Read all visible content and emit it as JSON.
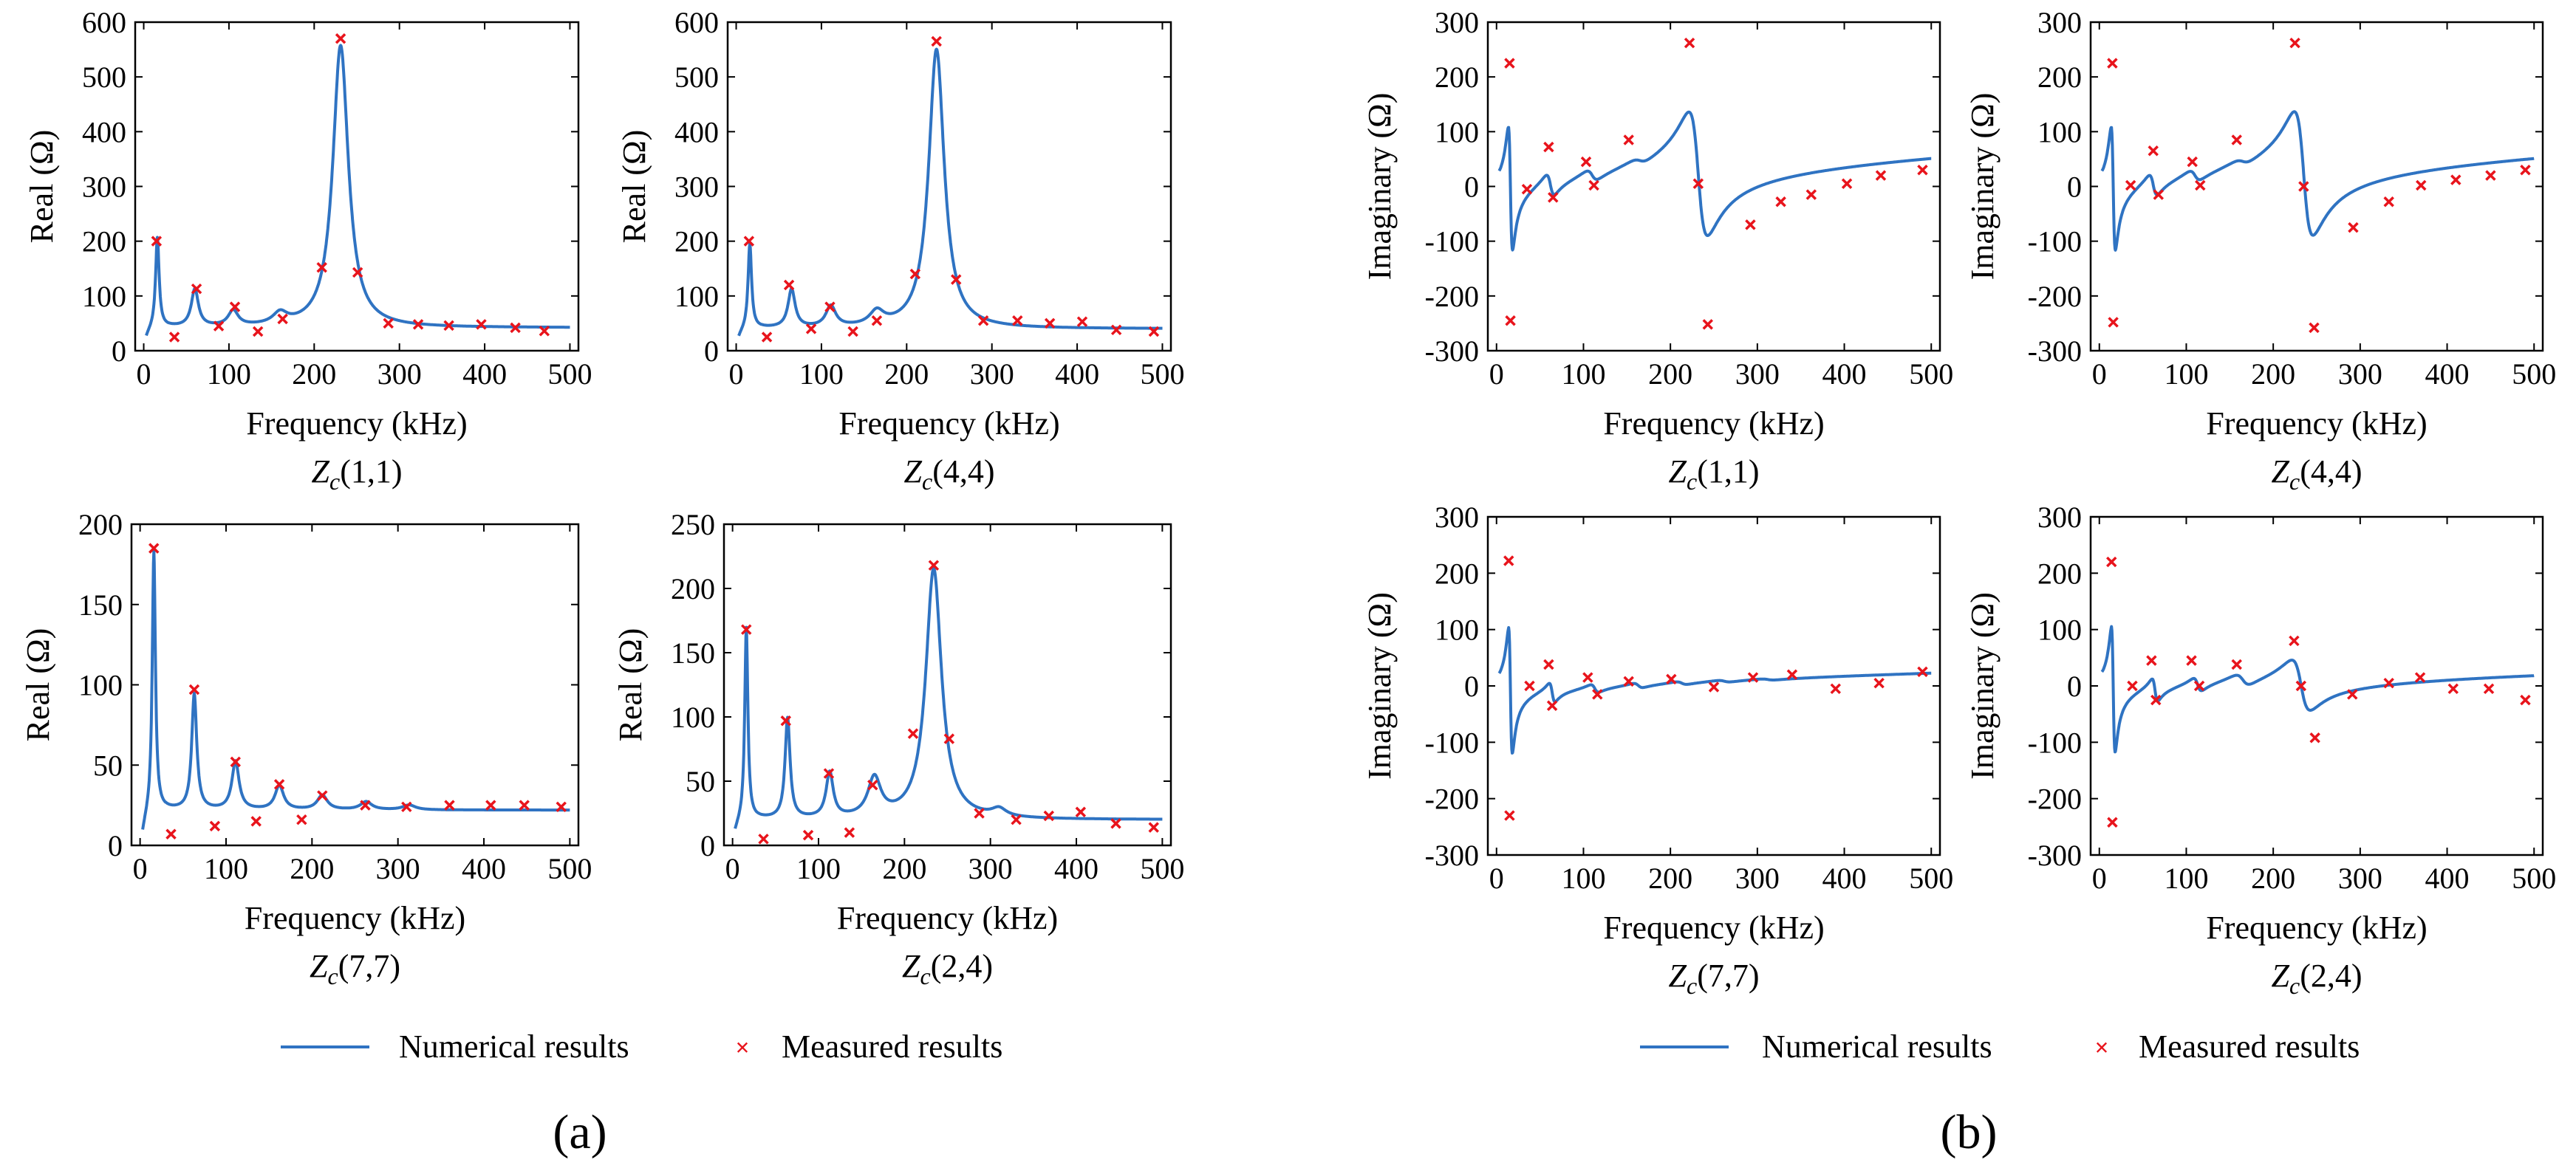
{
  "figure": {
    "panel_labels": [
      "(a)",
      "(b)"
    ],
    "legend": {
      "numerical_label": "Numerical results",
      "measured_label": "Measured results"
    },
    "colors": {
      "numerical": "#2f73c2",
      "measured": "#e8141c",
      "axis": "#000000"
    }
  },
  "chart_data": [
    {
      "id": "real_1_1",
      "type": "line",
      "caption_sub": "c",
      "caption_args": "(1,1)",
      "title": "Z_c(1,1)",
      "xlabel": "Frequency (kHz)",
      "ylabel": "Real (Ω)",
      "xlim": [
        -10,
        510
      ],
      "ylim": [
        0,
        600
      ],
      "xticks": [
        0,
        100,
        200,
        300,
        400,
        500
      ],
      "yticks": [
        0,
        100,
        200,
        300,
        400,
        500,
        600
      ],
      "baseline": 42,
      "start_value": 20,
      "damping": 0.5,
      "peaks": [
        {
          "f": 16,
          "a": 165,
          "w": 2.5
        },
        {
          "f": 60,
          "a": 68,
          "w": 5
        },
        {
          "f": 105,
          "a": 28,
          "w": 7
        },
        {
          "f": 160,
          "a": 20,
          "w": 10
        },
        {
          "f": 231,
          "a": 515,
          "w": 11
        }
      ],
      "measured": [
        [
          15,
          200
        ],
        [
          36,
          25
        ],
        [
          62,
          113
        ],
        [
          88,
          45
        ],
        [
          107,
          80
        ],
        [
          134,
          35
        ],
        [
          163,
          58
        ],
        [
          209,
          152
        ],
        [
          231,
          570
        ],
        [
          251,
          143
        ],
        [
          287,
          50
        ],
        [
          322,
          48
        ],
        [
          358,
          46
        ],
        [
          396,
          48
        ],
        [
          436,
          42
        ],
        [
          470,
          36
        ]
      ]
    },
    {
      "id": "real_4_4",
      "type": "line",
      "caption_sub": "c",
      "caption_args": "(4,4)",
      "title": "Z_c(4,4)",
      "xlabel": "Frequency (kHz)",
      "ylabel": "Real (Ω)",
      "xlim": [
        -10,
        510
      ],
      "ylim": [
        0,
        600
      ],
      "xticks": [
        0,
        100,
        200,
        300,
        400,
        500
      ],
      "yticks": [
        0,
        100,
        200,
        300,
        400,
        500,
        600
      ],
      "baseline": 40,
      "start_value": 20,
      "damping": 0.5,
      "peaks": [
        {
          "f": 16,
          "a": 155,
          "w": 2.5
        },
        {
          "f": 65,
          "a": 70,
          "w": 5
        },
        {
          "f": 111,
          "a": 38,
          "w": 7
        },
        {
          "f": 165,
          "a": 25,
          "w": 10
        },
        {
          "f": 235,
          "a": 510,
          "w": 11
        }
      ],
      "measured": [
        [
          15,
          200
        ],
        [
          36,
          25
        ],
        [
          62,
          120
        ],
        [
          88,
          40
        ],
        [
          110,
          80
        ],
        [
          137,
          35
        ],
        [
          165,
          55
        ],
        [
          210,
          140
        ],
        [
          235,
          565
        ],
        [
          258,
          130
        ],
        [
          290,
          55
        ],
        [
          330,
          55
        ],
        [
          368,
          50
        ],
        [
          406,
          53
        ],
        [
          446,
          38
        ],
        [
          490,
          35
        ]
      ]
    },
    {
      "id": "real_7_7",
      "type": "line",
      "caption_sub": "c",
      "caption_args": "(7,7)",
      "title": "Z_c(7,7)",
      "xlabel": "Frequency (kHz)",
      "ylabel": "Real (Ω)",
      "xlim": [
        -10,
        510
      ],
      "ylim": [
        0,
        200
      ],
      "xticks": [
        0,
        100,
        200,
        300,
        400,
        500
      ],
      "yticks": [
        0,
        50,
        100,
        150,
        200
      ],
      "baseline": 22,
      "start_value": 5,
      "damping": 0.5,
      "peaks": [
        {
          "f": 16,
          "a": 163,
          "w": 2.2
        },
        {
          "f": 63,
          "a": 72,
          "w": 3.5
        },
        {
          "f": 111,
          "a": 30,
          "w": 5
        },
        {
          "f": 162,
          "a": 15,
          "w": 6
        },
        {
          "f": 212,
          "a": 9,
          "w": 7
        },
        {
          "f": 263,
          "a": 5,
          "w": 8
        },
        {
          "f": 313,
          "a": 3,
          "w": 9
        }
      ],
      "measured": [
        [
          16,
          185
        ],
        [
          36,
          7
        ],
        [
          63,
          97
        ],
        [
          87,
          12
        ],
        [
          111,
          52
        ],
        [
          135,
          15
        ],
        [
          162,
          38
        ],
        [
          188,
          16
        ],
        [
          212,
          31
        ],
        [
          262,
          25
        ],
        [
          310,
          24
        ],
        [
          360,
          25
        ],
        [
          408,
          25
        ],
        [
          447,
          25
        ],
        [
          490,
          24
        ]
      ]
    },
    {
      "id": "real_2_4",
      "type": "line",
      "caption_sub": "c",
      "caption_args": "(2,4)",
      "title": "Z_c(2,4)",
      "xlabel": "Frequency (kHz)",
      "ylabel": "Real (Ω)",
      "xlim": [
        -10,
        510
      ],
      "ylim": [
        0,
        250
      ],
      "xticks": [
        0,
        100,
        200,
        300,
        400,
        500
      ],
      "yticks": [
        0,
        50,
        100,
        150,
        200,
        250
      ],
      "baseline": 20,
      "start_value": 8,
      "damping": 0.5,
      "peaks": [
        {
          "f": 16,
          "a": 150,
          "w": 2.2
        },
        {
          "f": 64,
          "a": 78,
          "w": 3.5
        },
        {
          "f": 113,
          "a": 35,
          "w": 5
        },
        {
          "f": 165,
          "a": 30,
          "w": 9
        },
        {
          "f": 234,
          "a": 195,
          "w": 11
        },
        {
          "f": 310,
          "a": 6,
          "w": 10
        }
      ],
      "measured": [
        [
          16,
          168
        ],
        [
          36,
          5
        ],
        [
          62,
          97
        ],
        [
          88,
          8
        ],
        [
          112,
          56
        ],
        [
          136,
          10
        ],
        [
          163,
          47
        ],
        [
          210,
          87
        ],
        [
          234,
          218
        ],
        [
          252,
          83
        ],
        [
          287,
          25
        ],
        [
          330,
          20
        ],
        [
          368,
          23
        ],
        [
          405,
          26
        ],
        [
          446,
          17
        ],
        [
          490,
          14
        ]
      ]
    },
    {
      "id": "imag_1_1",
      "type": "line",
      "caption_sub": "c",
      "caption_args": "(1,1)",
      "title": "Z_c(1,1)",
      "xlabel": "Frequency (kHz)",
      "ylabel": "Imaginary (Ω)",
      "xlim": [
        -10,
        510
      ],
      "ylim": [
        -300,
        300
      ],
      "xticks": [
        0,
        100,
        200,
        300,
        400,
        500
      ],
      "yticks": [
        -300,
        -200,
        -100,
        0,
        100,
        200,
        300
      ],
      "baseline": 0,
      "trend": {
        "a": 4.6,
        "b": -40
      },
      "start_value": 30,
      "peaks": [
        {
          "f": 16,
          "a": 230,
          "w": 2.5
        },
        {
          "f": 62,
          "a": 42,
          "w": 5
        },
        {
          "f": 110,
          "a": 22,
          "w": 7
        },
        {
          "f": 165,
          "a": 12,
          "w": 10
        },
        {
          "f": 232,
          "a": 230,
          "w": 11
        }
      ],
      "measured": [
        [
          15,
          225
        ],
        [
          16,
          -245
        ],
        [
          35,
          -5
        ],
        [
          60,
          72
        ],
        [
          65,
          -20
        ],
        [
          103,
          45
        ],
        [
          112,
          2
        ],
        [
          152,
          85
        ],
        [
          222,
          262
        ],
        [
          232,
          5
        ],
        [
          243,
          -252
        ],
        [
          292,
          -70
        ],
        [
          327,
          -28
        ],
        [
          362,
          -15
        ],
        [
          403,
          5
        ],
        [
          442,
          20
        ],
        [
          490,
          30
        ]
      ]
    },
    {
      "id": "imag_4_4",
      "type": "line",
      "caption_sub": "c",
      "caption_args": "(4,4)",
      "title": "Z_c(4,4)",
      "xlabel": "Frequency (kHz)",
      "ylabel": "Imaginary (Ω)",
      "xlim": [
        -10,
        510
      ],
      "ylim": [
        -300,
        300
      ],
      "xticks": [
        0,
        100,
        200,
        300,
        400,
        500
      ],
      "yticks": [
        -300,
        -200,
        -100,
        0,
        100,
        200,
        300
      ],
      "baseline": 0,
      "trend": {
        "a": 4.6,
        "b": -40
      },
      "start_value": 30,
      "peaks": [
        {
          "f": 16,
          "a": 230,
          "w": 2.5
        },
        {
          "f": 62,
          "a": 42,
          "w": 5
        },
        {
          "f": 110,
          "a": 22,
          "w": 7
        },
        {
          "f": 165,
          "a": 12,
          "w": 10
        },
        {
          "f": 235,
          "a": 230,
          "w": 11
        }
      ],
      "measured": [
        [
          15,
          225
        ],
        [
          16,
          -248
        ],
        [
          36,
          2
        ],
        [
          62,
          65
        ],
        [
          68,
          -15
        ],
        [
          107,
          45
        ],
        [
          116,
          2
        ],
        [
          158,
          85
        ],
        [
          225,
          262
        ],
        [
          235,
          0
        ],
        [
          247,
          -258
        ],
        [
          292,
          -75
        ],
        [
          333,
          -28
        ],
        [
          370,
          2
        ],
        [
          410,
          12
        ],
        [
          450,
          20
        ],
        [
          490,
          30
        ]
      ]
    },
    {
      "id": "imag_7_7",
      "type": "line",
      "caption_sub": "c",
      "caption_args": "(7,7)",
      "title": "Z_c(7,7)",
      "xlabel": "Frequency (kHz)",
      "ylabel": "Imaginary (Ω)",
      "xlim": [
        -10,
        510
      ],
      "ylim": [
        -300,
        300
      ],
      "xticks": [
        0,
        100,
        200,
        300,
        400,
        500
      ],
      "yticks": [
        -300,
        -200,
        -100,
        0,
        100,
        200,
        300
      ],
      "baseline": 0,
      "trend": {
        "a": 2,
        "b": -20
      },
      "start_value": 20,
      "peaks": [
        {
          "f": 16,
          "a": 225,
          "w": 2.2
        },
        {
          "f": 64,
          "a": 35,
          "w": 3.5
        },
        {
          "f": 113,
          "a": 15,
          "w": 5
        },
        {
          "f": 163,
          "a": 9,
          "w": 6
        },
        {
          "f": 213,
          "a": 6,
          "w": 7
        },
        {
          "f": 262,
          "a": 4,
          "w": 8
        },
        {
          "f": 312,
          "a": 3,
          "w": 9
        }
      ],
      "measured": [
        [
          14,
          222
        ],
        [
          15,
          -230
        ],
        [
          38,
          0
        ],
        [
          60,
          38
        ],
        [
          64,
          -35
        ],
        [
          105,
          15
        ],
        [
          116,
          -15
        ],
        [
          152,
          8
        ],
        [
          201,
          12
        ],
        [
          250,
          -2
        ],
        [
          295,
          15
        ],
        [
          340,
          20
        ],
        [
          390,
          -5
        ],
        [
          440,
          5
        ],
        [
          490,
          25
        ]
      ]
    },
    {
      "id": "imag_2_4",
      "type": "line",
      "caption_sub": "c",
      "caption_args": "(2,4)",
      "title": "Z_c(2,4)",
      "xlabel": "Frequency (kHz)",
      "ylabel": "Imaginary (Ω)",
      "xlim": [
        -10,
        510
      ],
      "ylim": [
        -300,
        300
      ],
      "xticks": [
        0,
        100,
        200,
        300,
        400,
        500
      ],
      "yticks": [
        -300,
        -200,
        -100,
        0,
        100,
        200,
        300
      ],
      "baseline": 0,
      "trend": {
        "a": 2.2,
        "b": -25
      },
      "start_value": 25,
      "peaks": [
        {
          "f": 16,
          "a": 225,
          "w": 2.2
        },
        {
          "f": 64,
          "a": 42,
          "w": 3.5
        },
        {
          "f": 113,
          "a": 25,
          "w": 5
        },
        {
          "f": 165,
          "a": 22,
          "w": 9
        },
        {
          "f": 232,
          "a": 92,
          "w": 11
        }
      ],
      "measured": [
        [
          14,
          220
        ],
        [
          15,
          -242
        ],
        [
          38,
          0
        ],
        [
          60,
          45
        ],
        [
          65,
          -25
        ],
        [
          106,
          45
        ],
        [
          115,
          0
        ],
        [
          158,
          38
        ],
        [
          224,
          80
        ],
        [
          232,
          0
        ],
        [
          248,
          -92
        ],
        [
          291,
          -15
        ],
        [
          333,
          5
        ],
        [
          369,
          15
        ],
        [
          407,
          -5
        ],
        [
          448,
          -5
        ],
        [
          490,
          -25
        ]
      ]
    }
  ]
}
